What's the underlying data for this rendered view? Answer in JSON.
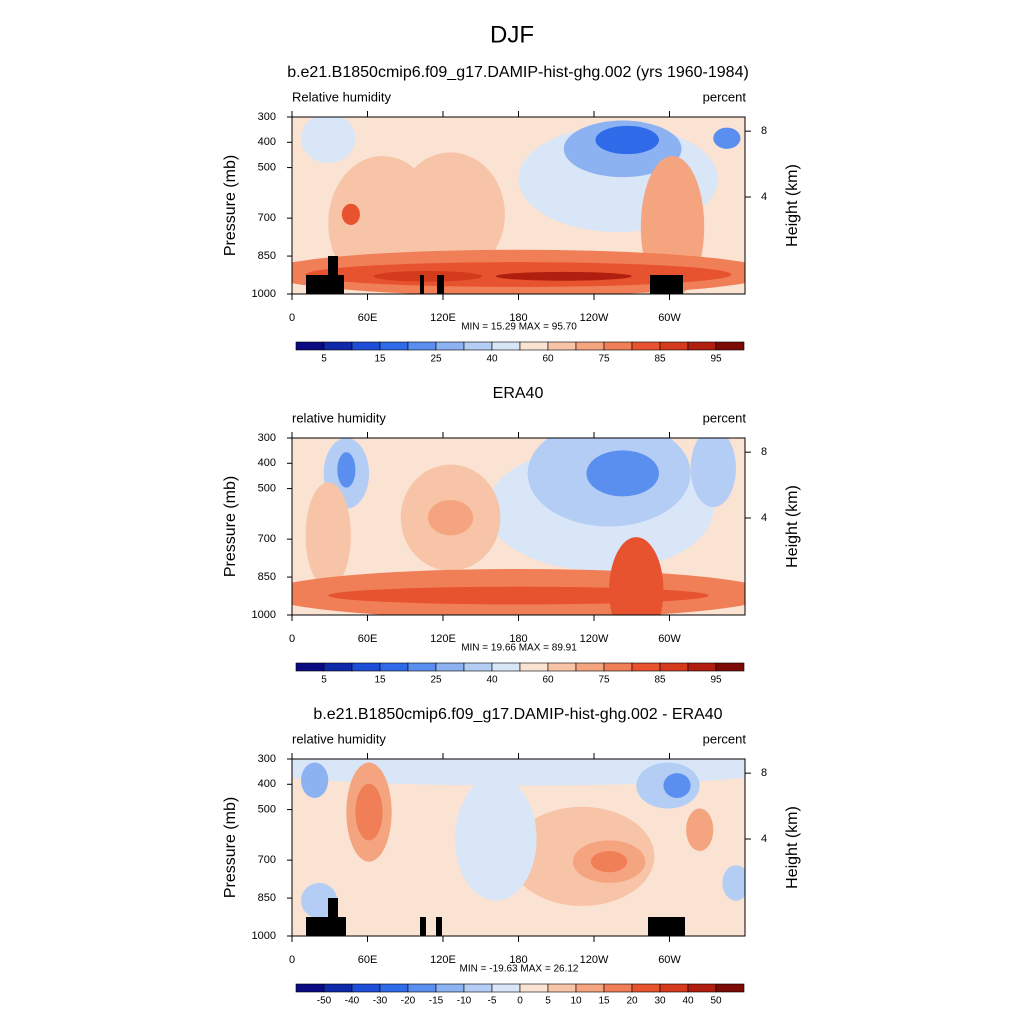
{
  "title": "DJF",
  "chart_data": [
    {
      "type": "contour",
      "title": "b.e21.B1850cmip6.f09_g17.DAMIP-hist-ghg.002 (yrs 1960-1984)",
      "left_label": "Relative humidity",
      "right_label": "percent",
      "stats": "MIN =  15.29  MAX =  95.70",
      "ylabel": "Pressure (mb)",
      "y2label": "Height (km)",
      "xlim": [
        0,
        360
      ],
      "xticks": [
        0,
        {
          "value": 60,
          "label": "60E"
        },
        {
          "value": 120,
          "label": "120E"
        },
        180,
        {
          "value": 240,
          "label": "120W"
        },
        {
          "value": 300,
          "label": "60W"
        }
      ],
      "ylim": [
        1000,
        300
      ],
      "yticks": [
        300,
        400,
        500,
        700,
        850,
        1000
      ],
      "y2ticks": [
        8,
        4
      ],
      "colorbar": {
        "label_every": 2,
        "labels": [
          5,
          15,
          25,
          40,
          60,
          75,
          85,
          95
        ],
        "colors": [
          "#0a0a82",
          "#0f2aa8",
          "#1e4ed8",
          "#2f6be8",
          "#5a8ff0",
          "#8cb2f2",
          "#b4cdf5",
          "#d8e6f7",
          "#fbe3d4",
          "#f7c4a8",
          "#f4a47e",
          "#f07f57",
          "#e8532f",
          "#d43a1c",
          "#b01e0f",
          "#7c0a05"
        ]
      }
    },
    {
      "type": "contour",
      "title": "ERA40",
      "left_label": "relative humidity",
      "right_label": "percent",
      "stats": "MIN =  19.66  MAX =  89.91",
      "ylabel": "Pressure (mb)",
      "y2label": "Height (km)",
      "xlim": [
        0,
        360
      ],
      "xticks": [
        0,
        {
          "value": 60,
          "label": "60E"
        },
        {
          "value": 120,
          "label": "120E"
        },
        180,
        {
          "value": 240,
          "label": "120W"
        },
        {
          "value": 300,
          "label": "60W"
        }
      ],
      "ylim": [
        1000,
        300
      ],
      "yticks": [
        300,
        400,
        500,
        700,
        850,
        1000
      ],
      "y2ticks": [
        8,
        4
      ],
      "colorbar": {
        "label_every": 2,
        "labels": [
          5,
          15,
          25,
          40,
          60,
          75,
          85,
          95
        ],
        "colors": [
          "#0a0a82",
          "#0f2aa8",
          "#1e4ed8",
          "#2f6be8",
          "#5a8ff0",
          "#8cb2f2",
          "#b4cdf5",
          "#d8e6f7",
          "#fbe3d4",
          "#f7c4a8",
          "#f4a47e",
          "#f07f57",
          "#e8532f",
          "#d43a1c",
          "#b01e0f",
          "#7c0a05"
        ]
      }
    },
    {
      "type": "contour",
      "title": "b.e21.B1850cmip6.f09_g17.DAMIP-hist-ghg.002 - ERA40",
      "left_label": "relative humidity",
      "right_label": "percent",
      "stats": "MIN = -19.63  MAX =  26.12",
      "ylabel": "Pressure (mb)",
      "y2label": "Height (km)",
      "xlim": [
        0,
        360
      ],
      "xticks": [
        0,
        {
          "value": 60,
          "label": "60E"
        },
        {
          "value": 120,
          "label": "120E"
        },
        180,
        {
          "value": 240,
          "label": "120W"
        },
        {
          "value": 300,
          "label": "60W"
        }
      ],
      "ylim": [
        1000,
        300
      ],
      "yticks": [
        300,
        400,
        500,
        700,
        850,
        1000
      ],
      "y2ticks": [
        8,
        4
      ],
      "colorbar": {
        "label_every": 1,
        "labels": [
          -50,
          -40,
          -30,
          -20,
          -15,
          -10,
          -5,
          0,
          5,
          10,
          15,
          20,
          30,
          40,
          50
        ],
        "colors": [
          "#0a0a82",
          "#0f2aa8",
          "#1e4ed8",
          "#2f6be8",
          "#5a8ff0",
          "#8cb2f2",
          "#b4cdf5",
          "#d8e6f7",
          "#fbe3d4",
          "#f7c4a8",
          "#f4a47e",
          "#f07f57",
          "#e8532f",
          "#d43a1c",
          "#b01e0f",
          "#7c0a05"
        ]
      }
    }
  ]
}
